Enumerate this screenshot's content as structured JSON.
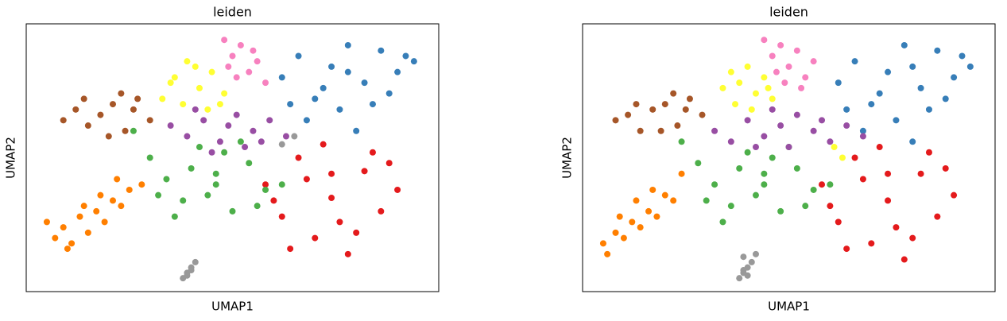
{
  "chart_data": [
    {
      "type": "scatter",
      "title": "leiden",
      "x_label": "UMAP1",
      "y_label": "UMAP2",
      "xlim": [
        0,
        100
      ],
      "ylim": [
        0,
        100
      ],
      "series": [
        {
          "color": "#377eb8",
          "x": [
            62,
            66,
            70,
            74,
            78,
            82,
            86,
            90,
            94,
            68,
            76,
            84,
            72,
            80,
            88,
            64,
            92,
            78
          ],
          "y": [
            80,
            88,
            72,
            84,
            92,
            78,
            90,
            82,
            86,
            64,
            68,
            70,
            76,
            60,
            74,
            70,
            88,
            82
          ]
        },
        {
          "color": "#e41a1c",
          "x": [
            58,
            62,
            66,
            70,
            74,
            78,
            82,
            86,
            90,
            64,
            72,
            80,
            88,
            68,
            76,
            84,
            60,
            74
          ],
          "y": [
            40,
            28,
            50,
            20,
            35,
            14,
            45,
            30,
            38,
            16,
            55,
            22,
            48,
            42,
            26,
            52,
            34,
            44
          ]
        },
        {
          "color": "#4daf4a",
          "x": [
            26,
            30,
            34,
            38,
            42,
            46,
            50,
            54,
            58,
            62,
            36,
            44,
            52,
            40,
            48,
            32,
            56,
            46
          ],
          "y": [
            60,
            50,
            42,
            34,
            54,
            44,
            30,
            48,
            38,
            40,
            28,
            36,
            56,
            46,
            52,
            36,
            32,
            40
          ]
        },
        {
          "color": "#ff7f00",
          "x": [
            5,
            7,
            9,
            11,
            13,
            15,
            17,
            19,
            21,
            23,
            25,
            28,
            10,
            14,
            18,
            22
          ],
          "y": [
            26,
            20,
            24,
            18,
            28,
            22,
            30,
            26,
            34,
            32,
            38,
            40,
            16,
            32,
            36,
            42
          ]
        },
        {
          "color": "#a65628",
          "x": [
            9,
            12,
            15,
            18,
            21,
            24,
            27,
            30,
            14,
            20,
            26,
            23
          ],
          "y": [
            64,
            68,
            62,
            66,
            70,
            60,
            72,
            64,
            72,
            58,
            68,
            74
          ]
        },
        {
          "color": "#ffff33",
          "x": [
            33,
            36,
            39,
            42,
            45,
            48,
            38,
            44,
            35,
            41,
            47
          ],
          "y": [
            72,
            80,
            86,
            76,
            82,
            74,
            70,
            68,
            78,
            84,
            70
          ]
        },
        {
          "color": "#f781bf",
          "x": [
            48,
            50,
            52,
            54,
            56,
            58,
            51,
            55,
            49
          ],
          "y": [
            94,
            88,
            92,
            82,
            86,
            78,
            80,
            90,
            84
          ]
        },
        {
          "color": "#984ea3",
          "x": [
            35,
            39,
            43,
            47,
            51,
            55,
            59,
            63,
            45,
            53,
            41,
            49,
            57
          ],
          "y": [
            62,
            58,
            64,
            56,
            66,
            60,
            64,
            58,
            52,
            54,
            68,
            62,
            56
          ]
        },
        {
          "color": "#999999",
          "x": [
            38,
            39,
            40,
            41,
            40,
            39,
            62,
            65
          ],
          "y": [
            5,
            7,
            9,
            11,
            8,
            6,
            55,
            58
          ]
        }
      ]
    },
    {
      "type": "scatter",
      "title": "leiden",
      "x_label": "UMAP1",
      "y_label": "UMAP2",
      "xlim": [
        0,
        100
      ],
      "ylim": [
        0,
        100
      ],
      "series": [
        {
          "color": "#377eb8",
          "x": [
            62,
            66,
            70,
            74,
            78,
            82,
            86,
            90,
            94,
            68,
            76,
            84,
            72,
            80,
            88,
            64,
            92,
            80
          ],
          "y": [
            78,
            86,
            70,
            82,
            92,
            76,
            90,
            80,
            84,
            60,
            64,
            68,
            74,
            56,
            72,
            68,
            88,
            84
          ]
        },
        {
          "color": "#e41a1c",
          "x": [
            58,
            62,
            66,
            70,
            74,
            78,
            82,
            86,
            90,
            64,
            72,
            80,
            88,
            68,
            76,
            84,
            60,
            74
          ],
          "y": [
            40,
            26,
            50,
            18,
            34,
            12,
            44,
            28,
            36,
            16,
            54,
            20,
            46,
            42,
            24,
            52,
            32,
            44
          ]
        },
        {
          "color": "#4daf4a",
          "x": [
            24,
            28,
            32,
            36,
            40,
            44,
            48,
            52,
            56,
            60,
            34,
            42,
            50,
            38,
            46,
            30,
            54,
            44
          ],
          "y": [
            56,
            48,
            40,
            32,
            52,
            44,
            30,
            46,
            38,
            40,
            26,
            36,
            54,
            46,
            50,
            34,
            32,
            40
          ]
        },
        {
          "color": "#ff7f00",
          "x": [
            5,
            6,
            8,
            10,
            12,
            14,
            16,
            18,
            20,
            22,
            24,
            9,
            13,
            17
          ],
          "y": [
            18,
            14,
            22,
            20,
            26,
            24,
            30,
            28,
            36,
            34,
            44,
            28,
            34,
            38
          ]
        },
        {
          "color": "#a65628",
          "x": [
            8,
            11,
            14,
            17,
            20,
            23,
            26,
            29,
            13,
            19,
            25,
            22
          ],
          "y": [
            64,
            66,
            60,
            68,
            70,
            62,
            72,
            66,
            70,
            60,
            68,
            74
          ]
        },
        {
          "color": "#ffff33",
          "x": [
            34,
            36,
            38,
            40,
            42,
            44,
            46,
            37,
            41,
            45,
            63,
            61
          ],
          "y": [
            76,
            82,
            78,
            84,
            74,
            80,
            72,
            70,
            68,
            76,
            50,
            54
          ]
        },
        {
          "color": "#f781bf",
          "x": [
            44,
            46,
            48,
            50,
            52,
            54,
            56,
            49,
            53,
            47
          ],
          "y": [
            94,
            88,
            92,
            84,
            90,
            80,
            86,
            78,
            76,
            82
          ]
        },
        {
          "color": "#984ea3",
          "x": [
            32,
            36,
            40,
            44,
            48,
            52,
            56,
            60,
            64,
            68,
            42,
            50,
            58,
            46
          ],
          "y": [
            60,
            56,
            64,
            58,
            62,
            66,
            60,
            56,
            62,
            58,
            54,
            54,
            64,
            68
          ]
        },
        {
          "color": "#999999",
          "x": [
            38,
            39,
            40,
            41,
            40,
            39,
            42,
            39
          ],
          "y": [
            5,
            7,
            9,
            11,
            6,
            13,
            14,
            8
          ]
        }
      ]
    }
  ]
}
